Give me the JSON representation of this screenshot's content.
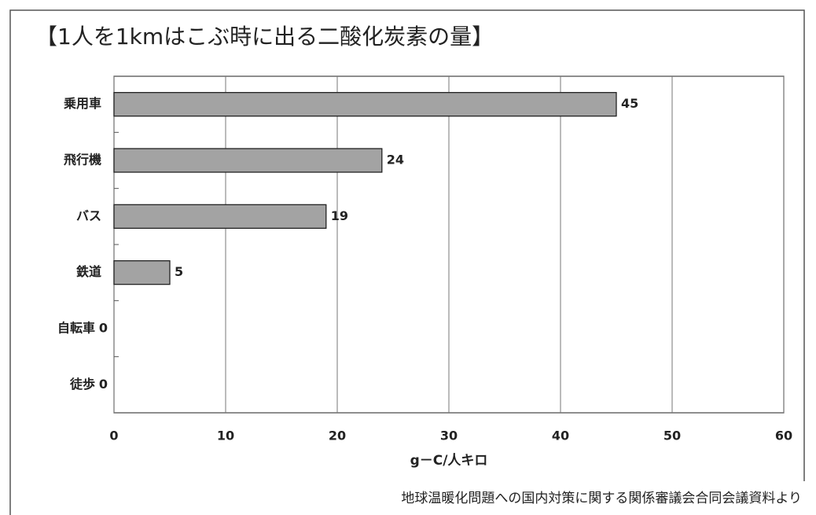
{
  "chart_data": {
    "type": "hbar",
    "title": "【1人を1kmはこぶ時に出る二酸化炭素の量】",
    "categories": [
      "乗用車",
      "飛行機",
      "バス",
      "鉄道",
      "自転車",
      "徒歩"
    ],
    "values": [
      45,
      24,
      19,
      5,
      0,
      0
    ],
    "color": "#a3a3a3",
    "xlim": [
      0,
      60
    ],
    "xticks": [
      0,
      10,
      20,
      30,
      40,
      50,
      60
    ],
    "grid": true,
    "xlabel": "g－C/人キロ",
    "source": "地球温暖化問題への国内対策に関する関係審議会合同会議資料より"
  }
}
